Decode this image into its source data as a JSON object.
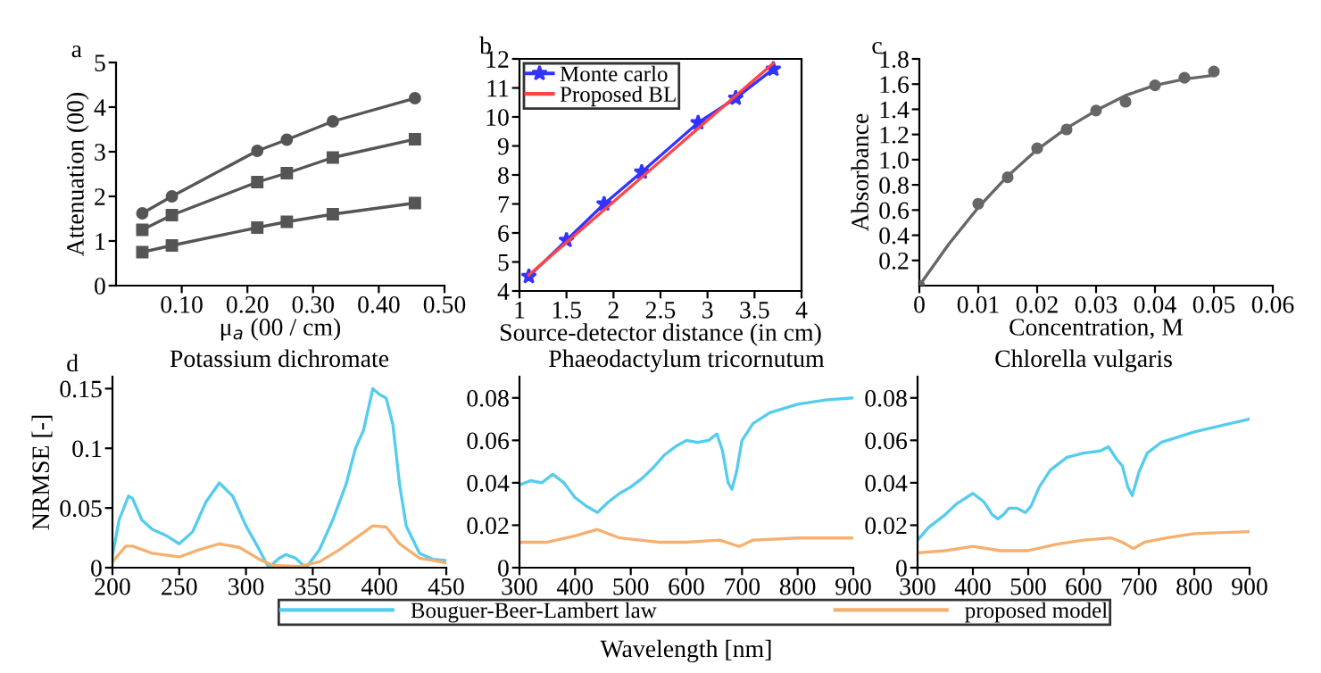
{
  "chart_data": [
    {
      "type": "line",
      "xlabel": "μ$_{a}$ (00 / cm)",
      "ylabel": "Attenuation (00)",
      "annotations": [
        "a"
      ],
      "xlim": [
        0,
        0.5
      ],
      "xticks": [
        {
          "value": 0.1,
          "label": "0.10"
        },
        {
          "value": 0.2,
          "label": "0.20"
        },
        {
          "value": 0.3,
          "label": "0.30"
        },
        {
          "value": 0.4,
          "label": "0.40"
        },
        {
          "value": 0.5,
          "label": "0.50"
        }
      ],
      "ylim": [
        0,
        5
      ],
      "yticks": [
        0,
        1,
        2,
        3,
        4,
        5
      ],
      "grid": false,
      "x": [
        0.04,
        0.085,
        0.215,
        0.26,
        0.33,
        0.455
      ],
      "series": [
        {
          "color": "#555555",
          "marker": "circle",
          "values": [
            1.62,
            2.0,
            3.02,
            3.27,
            3.68,
            4.2
          ]
        },
        {
          "color": "#555555",
          "marker": "square",
          "values": [
            1.25,
            1.58,
            2.32,
            2.52,
            2.87,
            3.28
          ]
        },
        {
          "color": "#555555",
          "marker": "square",
          "values": [
            0.75,
            0.9,
            1.3,
            1.43,
            1.6,
            1.85
          ]
        }
      ]
    },
    {
      "type": "line",
      "xlabel": "Source-detector distance (in cm)",
      "annotations": [
        "b"
      ],
      "xlim": [
        1,
        4
      ],
      "xticks": [
        1,
        1.5,
        2,
        2.5,
        3,
        3.5,
        4
      ],
      "ylim": [
        4,
        12
      ],
      "yticks": [
        4,
        5,
        6,
        7,
        8,
        9,
        10,
        11,
        12
      ],
      "grid": false,
      "legend": "top left",
      "series": [
        {
          "name": "Monte carlo",
          "color": "#3333ff",
          "marker": "star",
          "x": [
            1.1,
            1.5,
            1.9,
            2.3,
            2.9,
            3.3,
            3.7
          ],
          "values": [
            4.5,
            5.75,
            7.0,
            8.1,
            9.8,
            10.65,
            11.65
          ]
        },
        {
          "name": "Proposed BL",
          "color": "#ff4444",
          "x": [
            1.1,
            3.7
          ],
          "values": [
            4.55,
            11.85
          ]
        }
      ]
    },
    {
      "type": "scatter",
      "xlabel": "Concentration, M",
      "ylabel": "Absorbance",
      "annotations": [
        "c"
      ],
      "xlim": [
        0,
        0.06
      ],
      "xticks": [
        0,
        0.01,
        0.02,
        0.03,
        0.04,
        0.05,
        0.06
      ],
      "ylim": [
        0,
        1.8
      ],
      "yticks": [
        0.2,
        0.4,
        0.6,
        0.8,
        {
          "value": 1.0,
          "label": "1.0"
        },
        1.2,
        1.4,
        1.6,
        1.8
      ],
      "grid": false,
      "series": [
        {
          "color": "#666666",
          "marker": "circle",
          "x": [
            0,
            0.01,
            0.015,
            0.02,
            0.025,
            0.03,
            0.035,
            0.04,
            0.045,
            0.05
          ],
          "values": [
            0,
            0.65,
            0.86,
            1.09,
            1.24,
            1.39,
            1.46,
            1.59,
            1.65,
            1.7
          ]
        },
        {
          "type": "line",
          "color": "#666666",
          "x": [
            0,
            0.005,
            0.01,
            0.015,
            0.02,
            0.025,
            0.03,
            0.035,
            0.04,
            0.045,
            0.05
          ],
          "values": [
            0,
            0.33,
            0.62,
            0.87,
            1.08,
            1.25,
            1.39,
            1.51,
            1.59,
            1.64,
            1.67
          ]
        }
      ]
    },
    {
      "type": "line",
      "title": "Potassium dichromate",
      "ylabel": "NRMSE [-]",
      "annotations": [
        "d"
      ],
      "xlim": [
        200,
        450
      ],
      "xticks": [
        200,
        250,
        300,
        350,
        400,
        450
      ],
      "ylim": [
        0,
        0.16
      ],
      "yticks": [
        0,
        0.05,
        0.1,
        0.15
      ],
      "grid": false,
      "legend": "bottom",
      "series": [
        {
          "name": "Bouguer-Beer-Lambert law",
          "color": "#55ccee",
          "x": [
            200,
            205,
            212,
            215,
            222,
            230,
            240,
            250,
            260,
            270,
            280,
            290,
            300,
            310,
            317,
            325,
            330,
            337,
            345,
            355,
            365,
            375,
            382,
            388,
            395,
            400,
            405,
            410,
            415,
            420,
            430,
            440,
            450
          ],
          "values": [
            0.01,
            0.04,
            0.06,
            0.058,
            0.04,
            0.032,
            0.027,
            0.02,
            0.03,
            0.055,
            0.071,
            0.06,
            0.035,
            0.015,
            0.0,
            0.008,
            0.011,
            0.008,
            0.0,
            0.015,
            0.04,
            0.07,
            0.1,
            0.115,
            0.15,
            0.145,
            0.142,
            0.12,
            0.07,
            0.035,
            0.012,
            0.007,
            0.006
          ]
        },
        {
          "name": "proposed model",
          "color": "#f5b070",
          "x": [
            200,
            210,
            215,
            230,
            250,
            265,
            280,
            295,
            310,
            320,
            340,
            355,
            370,
            385,
            395,
            405,
            415,
            430,
            450
          ],
          "values": [
            0.005,
            0.018,
            0.018,
            0.012,
            0.009,
            0.015,
            0.02,
            0.017,
            0.007,
            0.002,
            0.001,
            0.005,
            0.015,
            0.027,
            0.035,
            0.034,
            0.02,
            0.008,
            0.004
          ]
        }
      ]
    },
    {
      "type": "line",
      "title": "Phaeodactylum tricornutum",
      "xlabel": "Wavelength [nm]",
      "xlim": [
        300,
        900
      ],
      "xticks": [
        300,
        400,
        500,
        600,
        700,
        800,
        900
      ],
      "ylim": [
        0,
        0.09
      ],
      "yticks": [
        0,
        0.02,
        0.04,
        0.06,
        0.08
      ],
      "grid": false,
      "series": [
        {
          "color": "#55ccee",
          "x": [
            300,
            320,
            340,
            360,
            380,
            400,
            420,
            440,
            460,
            480,
            500,
            520,
            540,
            560,
            580,
            600,
            620,
            640,
            655,
            665,
            675,
            682,
            690,
            700,
            720,
            750,
            800,
            850,
            900
          ],
          "values": [
            0.039,
            0.041,
            0.04,
            0.044,
            0.04,
            0.033,
            0.029,
            0.026,
            0.031,
            0.035,
            0.038,
            0.042,
            0.047,
            0.053,
            0.057,
            0.06,
            0.059,
            0.06,
            0.063,
            0.055,
            0.04,
            0.037,
            0.045,
            0.06,
            0.068,
            0.073,
            0.077,
            0.079,
            0.08
          ]
        },
        {
          "color": "#f5b070",
          "x": [
            300,
            350,
            400,
            440,
            480,
            550,
            600,
            660,
            695,
            720,
            800,
            900
          ],
          "values": [
            0.012,
            0.012,
            0.015,
            0.018,
            0.014,
            0.012,
            0.012,
            0.013,
            0.01,
            0.013,
            0.014,
            0.014
          ]
        }
      ]
    },
    {
      "type": "line",
      "title": "Chlorella vulgaris",
      "xlim": [
        300,
        900
      ],
      "xticks": [
        300,
        400,
        500,
        600,
        700,
        800,
        900
      ],
      "ylim": [
        0,
        0.09
      ],
      "yticks": [
        0,
        0.02,
        0.04,
        0.06,
        0.08
      ],
      "grid": false,
      "series": [
        {
          "color": "#55ccee",
          "x": [
            300,
            320,
            350,
            370,
            400,
            420,
            435,
            445,
            455,
            465,
            480,
            495,
            505,
            520,
            540,
            570,
            600,
            630,
            645,
            660,
            670,
            680,
            688,
            700,
            715,
            740,
            800,
            850,
            900
          ],
          "values": [
            0.013,
            0.019,
            0.025,
            0.03,
            0.035,
            0.031,
            0.025,
            0.023,
            0.025,
            0.028,
            0.028,
            0.026,
            0.029,
            0.038,
            0.046,
            0.052,
            0.054,
            0.055,
            0.057,
            0.051,
            0.048,
            0.038,
            0.034,
            0.045,
            0.054,
            0.059,
            0.064,
            0.067,
            0.07
          ]
        },
        {
          "color": "#f5b070",
          "x": [
            300,
            350,
            400,
            450,
            500,
            550,
            600,
            650,
            670,
            690,
            710,
            750,
            800,
            900
          ],
          "values": [
            0.007,
            0.008,
            0.01,
            0.008,
            0.008,
            0.011,
            0.013,
            0.014,
            0.012,
            0.009,
            0.012,
            0.014,
            0.016,
            0.017
          ]
        }
      ]
    }
  ]
}
